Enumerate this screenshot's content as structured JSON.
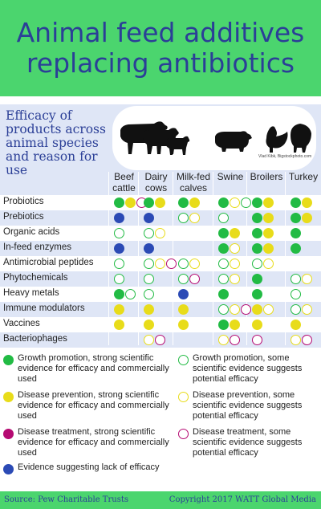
{
  "title_line1": "Animal feed additives",
  "title_line2": "replacing antibiotics",
  "efficacy_title": "Efficacy of products across animal species and reason for use",
  "photo_credit": "Vlad Kibk, Bigstockphoto.com",
  "colors": {
    "header_green": "#4bd56e",
    "title_blue": "#2b3f97",
    "row_light": "#dfe6f6",
    "row_white": "#ffffff",
    "growth": "#22bb44",
    "prevention": "#e8dc1a",
    "treatment": "#b50a72",
    "lack": "#2b4ab5"
  },
  "columns": [
    {
      "line1": "Beef",
      "line2": "cattle"
    },
    {
      "line1": "Dairy",
      "line2": "cows"
    },
    {
      "line1": "Milk-fed",
      "line2": "calves"
    },
    {
      "line1": "Swine",
      "line2": ""
    },
    {
      "line1": "Broilers",
      "line2": ""
    },
    {
      "line1": "Turkey",
      "line2": ""
    }
  ],
  "rows": [
    {
      "label": "Probiotics",
      "cells": [
        [
          "G",
          "Y",
          "o-P"
        ],
        [
          "G",
          "Y"
        ],
        [
          "G",
          "Y"
        ],
        [
          "G",
          "o-Y",
          "o-G"
        ],
        [
          "G",
          "Y"
        ],
        [
          "G",
          "Y"
        ]
      ]
    },
    {
      "label": "Prebiotics",
      "cells": [
        [
          "B"
        ],
        [
          "B"
        ],
        [
          "o-G",
          "o-Y"
        ],
        [
          "o-G"
        ],
        [
          "G",
          "Y"
        ],
        [
          "G",
          "Y"
        ]
      ]
    },
    {
      "label": "Organic acids",
      "cells": [
        [
          "o-G"
        ],
        [
          "o-G",
          "o-Y"
        ],
        [],
        [
          "G",
          "Y"
        ],
        [
          "G",
          "Y"
        ],
        [
          "G"
        ]
      ]
    },
    {
      "label": "In-feed enzymes",
      "cells": [
        [
          "B"
        ],
        [
          "B"
        ],
        [],
        [
          "G",
          "o-Y"
        ],
        [
          "G",
          "Y"
        ],
        [
          "G"
        ]
      ]
    },
    {
      "label": "Antimicrobial peptides",
      "cells": [
        [
          "o-G"
        ],
        [
          "o-G",
          "o-Y",
          "o-P"
        ],
        [
          "o-G",
          "o-Y"
        ],
        [
          "o-G",
          "o-Y"
        ],
        [
          "o-G",
          "o-Y"
        ],
        []
      ]
    },
    {
      "label": "Phytochemicals",
      "cells": [
        [
          "o-G"
        ],
        [
          "o-G"
        ],
        [
          "o-G",
          "o-P"
        ],
        [
          "o-G",
          "o-Y"
        ],
        [
          "G"
        ],
        [
          "o-G",
          "o-Y"
        ]
      ]
    },
    {
      "label": "Heavy metals",
      "cells": [
        [
          "G",
          "o-G"
        ],
        [
          "o-G"
        ],
        [
          "B"
        ],
        [
          "G"
        ],
        [
          "G"
        ],
        [
          "o-G"
        ]
      ]
    },
    {
      "label": "Immune modulators",
      "cells": [
        [
          "Y"
        ],
        [
          "Y"
        ],
        [
          "Y"
        ],
        [
          "o-G",
          "o-Y",
          "o-P"
        ],
        [
          "Y",
          "o-Y"
        ],
        [
          "o-G",
          "o-Y"
        ]
      ]
    },
    {
      "label": "Vaccines",
      "cells": [
        [
          "Y"
        ],
        [
          "Y"
        ],
        [
          "Y"
        ],
        [
          "G",
          "Y"
        ],
        [
          "Y"
        ],
        [
          "Y"
        ]
      ]
    },
    {
      "label": "Bacteriophages",
      "cells": [
        [],
        [
          "o-Y",
          "o-P"
        ],
        [],
        [
          "o-Y",
          "o-P"
        ],
        [
          "o-P"
        ],
        [
          "o-Y",
          "o-P"
        ]
      ]
    }
  ],
  "legend": [
    {
      "key": "G",
      "text": "Growth promotion, strong scientific evidence for efficacy and commercially used"
    },
    {
      "key": "o-G",
      "text": "Growth promotion, some scientific evidence suggests potential efficacy"
    },
    {
      "key": "Y",
      "text": "Disease prevention, strong scientific evidence for efficacy and commercially used"
    },
    {
      "key": "o-Y",
      "text": "Disease prevention, some scientific evidence suggests potential efficacy"
    },
    {
      "key": "P",
      "text": "Disease treatment, strong scientific evidence for efficacy and commercially used"
    },
    {
      "key": "o-P",
      "text": "Disease treatment, some scientific evidence suggests potential efficacy"
    },
    {
      "key": "B",
      "text": "Evidence suggesting lack of efficacy"
    }
  ],
  "footer": {
    "source": "Source: Pew Charitable Trusts",
    "copyright": "Copyright 2017 WATT Global Media"
  }
}
